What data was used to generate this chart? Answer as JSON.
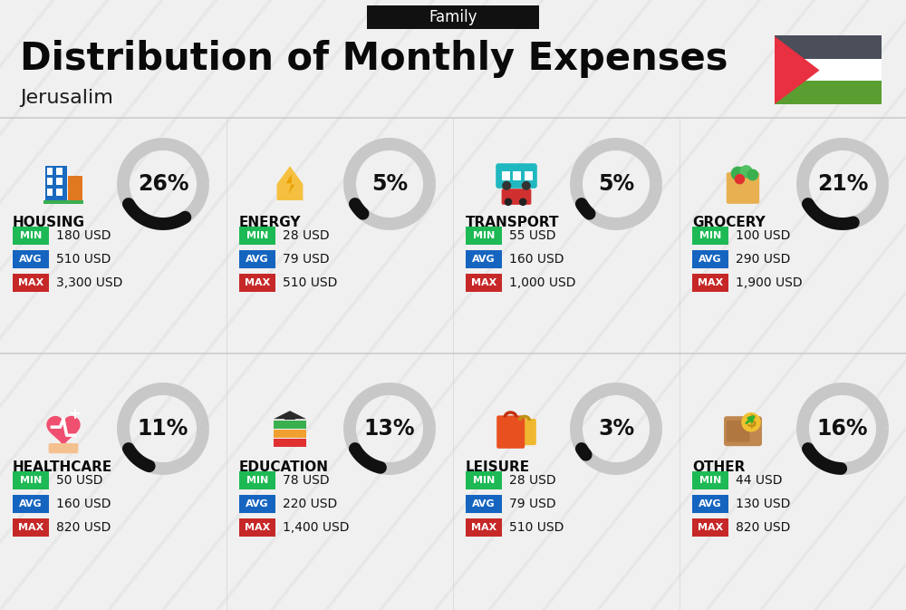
{
  "title": "Distribution of Monthly Expenses",
  "subtitle": "Jerusalim",
  "header_label": "Family",
  "bg_color": "#f0f0f0",
  "header_bg": "#111111",
  "header_fg": "#ffffff",
  "title_color": "#0a0a0a",
  "subtitle_color": "#1a1a1a",
  "min_color": "#1db954",
  "avg_color": "#1565c0",
  "max_color": "#c62828",
  "circle_bg_color": "#c8c8c8",
  "arc_color": "#111111",
  "flag_black": "#4a4f5a",
  "flag_white": "#ffffff",
  "flag_green": "#5a9e32",
  "flag_red": "#e83040",
  "categories": [
    {
      "name": "HOUSING",
      "pct": 26,
      "min": "180 USD",
      "avg": "510 USD",
      "max": "3,300 USD",
      "row": 0,
      "col": 0
    },
    {
      "name": "ENERGY",
      "pct": 5,
      "min": "28 USD",
      "avg": "79 USD",
      "max": "510 USD",
      "row": 0,
      "col": 1
    },
    {
      "name": "TRANSPORT",
      "pct": 5,
      "min": "55 USD",
      "avg": "160 USD",
      "max": "1,000 USD",
      "row": 0,
      "col": 2
    },
    {
      "name": "GROCERY",
      "pct": 21,
      "min": "100 USD",
      "avg": "290 USD",
      "max": "1,900 USD",
      "row": 0,
      "col": 3
    },
    {
      "name": "HEALTHCARE",
      "pct": 11,
      "min": "50 USD",
      "avg": "160 USD",
      "max": "820 USD",
      "row": 1,
      "col": 0
    },
    {
      "name": "EDUCATION",
      "pct": 13,
      "min": "78 USD",
      "avg": "220 USD",
      "max": "1,400 USD",
      "row": 1,
      "col": 1
    },
    {
      "name": "LEISURE",
      "pct": 3,
      "min": "28 USD",
      "avg": "79 USD",
      "max": "510 USD",
      "row": 1,
      "col": 2
    },
    {
      "name": "OTHER",
      "pct": 16,
      "min": "44 USD",
      "avg": "130 USD",
      "max": "820 USD",
      "row": 1,
      "col": 3
    }
  ],
  "stripe_color": "#e0e0e0",
  "divider_color": "#cccccc",
  "pct_fontsize": 17,
  "name_fontsize": 11,
  "val_fontsize": 10,
  "badge_fontsize": 8,
  "title_fontsize": 30,
  "subtitle_fontsize": 16,
  "header_fontsize": 12
}
